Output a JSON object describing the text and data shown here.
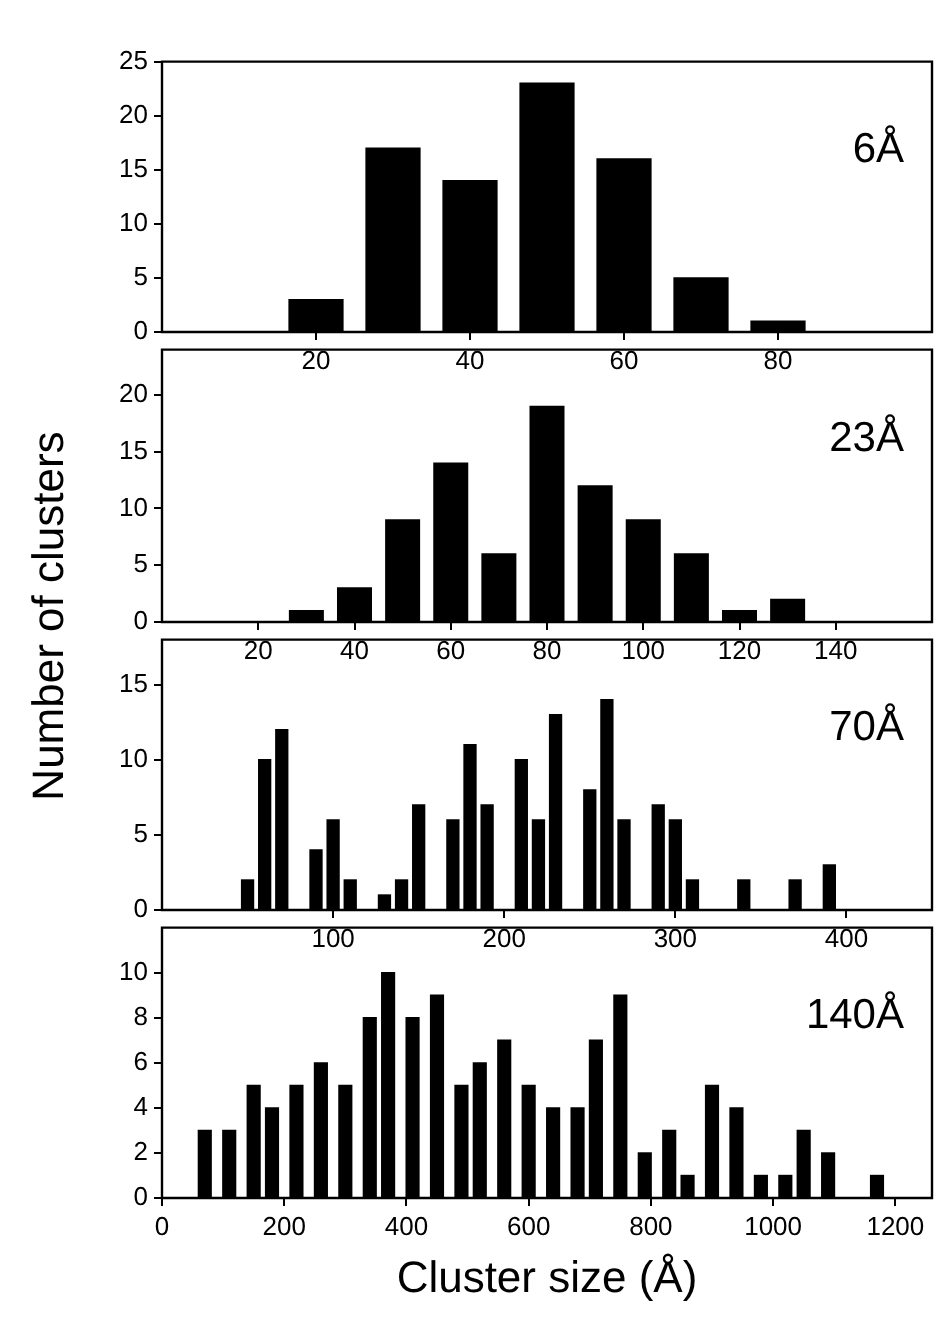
{
  "chart_data": [
    {
      "type": "bar",
      "ylabel": "Number of clusters",
      "annotations": [
        "6Å"
      ],
      "color": "#000000",
      "x": [
        20,
        30,
        40,
        50,
        60,
        70,
        80
      ],
      "values": [
        3,
        17,
        14,
        23,
        16,
        5,
        1
      ],
      "xlim": [
        0,
        100
      ],
      "xticks": [
        20,
        40,
        60,
        80
      ],
      "ylim": [
        0,
        25
      ],
      "yticks": [
        0,
        5,
        10,
        15,
        20,
        25
      ]
    },
    {
      "type": "bar",
      "annotations": [
        "23Å"
      ],
      "color": "#000000",
      "x": [
        30,
        40,
        50,
        60,
        70,
        80,
        90,
        100,
        110,
        120,
        130
      ],
      "values": [
        1,
        3,
        9,
        14,
        6,
        19,
        12,
        9,
        6,
        1,
        2
      ],
      "xlim": [
        0,
        160
      ],
      "xticks": [
        20,
        40,
        60,
        80,
        100,
        120,
        140
      ],
      "ylim": [
        0,
        24
      ],
      "yticks": [
        0,
        5,
        10,
        15,
        20
      ]
    },
    {
      "type": "bar",
      "annotations": [
        "70Å"
      ],
      "color": "#000000",
      "x": [
        50,
        60,
        70,
        90,
        100,
        110,
        130,
        140,
        150,
        170,
        180,
        190,
        210,
        220,
        230,
        250,
        260,
        270,
        290,
        300,
        310,
        340,
        370,
        390
      ],
      "values": [
        2,
        10,
        12,
        4,
        6,
        2,
        1,
        2,
        7,
        6,
        11,
        7,
        10,
        6,
        13,
        8,
        14,
        6,
        7,
        6,
        2,
        2,
        2,
        3
      ],
      "xlim": [
        0,
        450
      ],
      "xticks": [
        100,
        200,
        300,
        400
      ],
      "ylim": [
        0,
        18
      ],
      "yticks": [
        0,
        5,
        10,
        15
      ]
    },
    {
      "type": "bar",
      "xlabel": "Cluster size (Å)",
      "annotations": [
        "140Å"
      ],
      "color": "#000000",
      "x": [
        70,
        110,
        150,
        180,
        220,
        260,
        300,
        340,
        370,
        410,
        450,
        490,
        520,
        560,
        600,
        640,
        680,
        710,
        750,
        790,
        830,
        860,
        900,
        940,
        980,
        1020,
        1050,
        1090,
        1170
      ],
      "values": [
        3,
        3,
        5,
        4,
        5,
        6,
        5,
        8,
        10,
        8,
        9,
        5,
        6,
        7,
        5,
        4,
        4,
        7,
        9,
        2,
        3,
        1,
        5,
        4,
        1,
        1,
        3,
        2,
        1
      ],
      "xlim": [
        0,
        1260
      ],
      "xticks": [
        0,
        200,
        400,
        600,
        800,
        1000,
        1200
      ],
      "ylim": [
        0,
        12
      ],
      "yticks": [
        0,
        2,
        4,
        6,
        8,
        10
      ]
    }
  ]
}
